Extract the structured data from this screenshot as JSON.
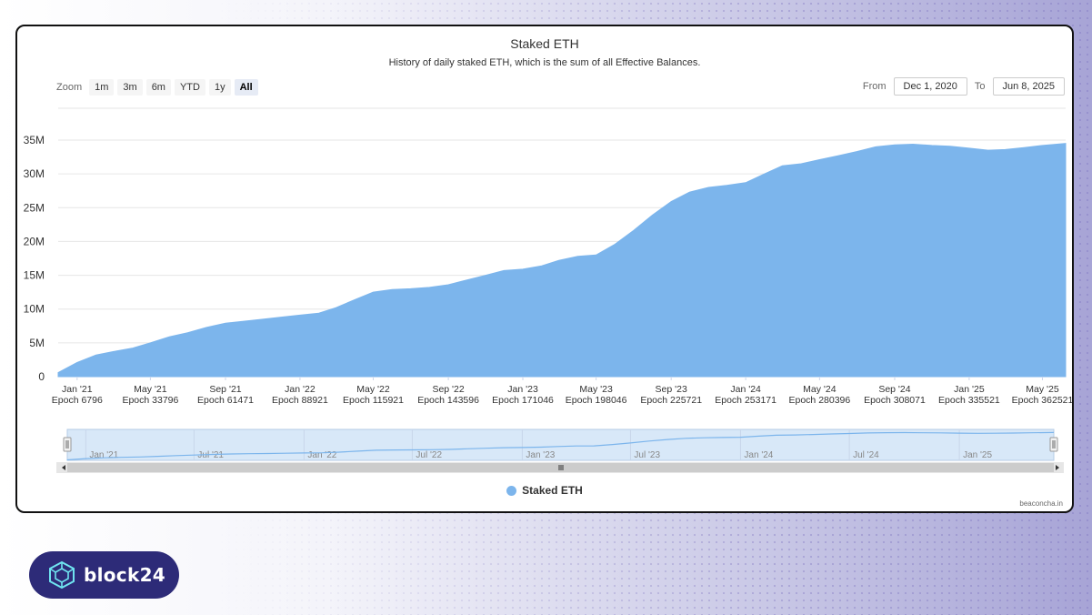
{
  "header": {
    "title": "Staked ETH",
    "subtitle": "History of daily staked ETH, which is the sum of all Effective Balances."
  },
  "zoom": {
    "label": "Zoom",
    "buttons": [
      "1m",
      "3m",
      "6m",
      "YTD",
      "1y",
      "All"
    ],
    "active": "All"
  },
  "range": {
    "from_label": "From",
    "from_value": "Dec 1, 2020",
    "to_label": "To",
    "to_value": "Jun 8, 2025"
  },
  "legend": {
    "label": "Staked ETH"
  },
  "credit": "beaconcha.in",
  "brand": {
    "name": "block24"
  },
  "colors": {
    "series": "#7cb5ec",
    "navigator_fill": "#d8e8f8",
    "brand_bg": "#2d2b78"
  },
  "chart_data": {
    "type": "area",
    "title": "Staked ETH",
    "subtitle": "History of daily staked ETH, which is the sum of all Effective Balances.",
    "ylim": [
      0,
      35000000
    ],
    "yticks": [
      0,
      5000000,
      10000000,
      15000000,
      20000000,
      25000000,
      30000000,
      35000000
    ],
    "ytick_labels": [
      "0",
      "5M",
      "10M",
      "15M",
      "20M",
      "25M",
      "30M",
      "35M"
    ],
    "xlim": [
      "2020-12-01",
      "2025-06-08"
    ],
    "xticks": [
      {
        "date": "2021-01-01",
        "label": "Jan '21",
        "epoch": "Epoch 6796"
      },
      {
        "date": "2021-05-01",
        "label": "May '21",
        "epoch": "Epoch 33796"
      },
      {
        "date": "2021-09-01",
        "label": "Sep '21",
        "epoch": "Epoch 61471"
      },
      {
        "date": "2022-01-01",
        "label": "Jan '22",
        "epoch": "Epoch 88921"
      },
      {
        "date": "2022-05-01",
        "label": "May '22",
        "epoch": "Epoch 115921"
      },
      {
        "date": "2022-09-01",
        "label": "Sep '22",
        "epoch": "Epoch 143596"
      },
      {
        "date": "2023-01-01",
        "label": "Jan '23",
        "epoch": "Epoch 171046"
      },
      {
        "date": "2023-05-01",
        "label": "May '23",
        "epoch": "Epoch 198046"
      },
      {
        "date": "2023-09-01",
        "label": "Sep '23",
        "epoch": "Epoch 225721"
      },
      {
        "date": "2024-01-01",
        "label": "Jan '24",
        "epoch": "Epoch 253171"
      },
      {
        "date": "2024-05-01",
        "label": "May '24",
        "epoch": "Epoch 280396"
      },
      {
        "date": "2024-09-01",
        "label": "Sep '24",
        "epoch": "Epoch 308071"
      },
      {
        "date": "2025-01-01",
        "label": "Jan '25",
        "epoch": "Epoch 335521"
      },
      {
        "date": "2025-05-01",
        "label": "May '25",
        "epoch": "Epoch 362521"
      }
    ],
    "navigator_ticks": [
      {
        "date": "2021-01-01",
        "label": "Jan '21"
      },
      {
        "date": "2021-07-01",
        "label": "Jul '21"
      },
      {
        "date": "2022-01-01",
        "label": "Jan '22"
      },
      {
        "date": "2022-07-01",
        "label": "Jul '22"
      },
      {
        "date": "2023-01-01",
        "label": "Jan '23"
      },
      {
        "date": "2023-07-01",
        "label": "Jul '23"
      },
      {
        "date": "2024-01-01",
        "label": "Jan '24"
      },
      {
        "date": "2024-07-01",
        "label": "Jul '24"
      },
      {
        "date": "2025-01-01",
        "label": "Jan '25"
      }
    ],
    "grid": true,
    "legend_position": "bottom-center",
    "series": [
      {
        "name": "Staked ETH",
        "points": [
          [
            "2020-12-01",
            600000
          ],
          [
            "2021-01-01",
            2100000
          ],
          [
            "2021-02-01",
            3200000
          ],
          [
            "2021-03-01",
            3700000
          ],
          [
            "2021-04-01",
            4200000
          ],
          [
            "2021-05-01",
            5000000
          ],
          [
            "2021-06-01",
            5900000
          ],
          [
            "2021-07-01",
            6500000
          ],
          [
            "2021-08-01",
            7300000
          ],
          [
            "2021-09-01",
            7900000
          ],
          [
            "2021-10-01",
            8200000
          ],
          [
            "2021-11-01",
            8500000
          ],
          [
            "2021-12-01",
            8800000
          ],
          [
            "2022-01-01",
            9100000
          ],
          [
            "2022-02-01",
            9400000
          ],
          [
            "2022-03-01",
            10200000
          ],
          [
            "2022-04-01",
            11400000
          ],
          [
            "2022-05-01",
            12500000
          ],
          [
            "2022-06-01",
            12900000
          ],
          [
            "2022-07-01",
            13000000
          ],
          [
            "2022-08-01",
            13200000
          ],
          [
            "2022-09-01",
            13600000
          ],
          [
            "2022-10-01",
            14300000
          ],
          [
            "2022-11-01",
            15000000
          ],
          [
            "2022-12-01",
            15700000
          ],
          [
            "2023-01-01",
            15900000
          ],
          [
            "2023-02-01",
            16400000
          ],
          [
            "2023-03-01",
            17200000
          ],
          [
            "2023-04-01",
            17800000
          ],
          [
            "2023-05-01",
            18000000
          ],
          [
            "2023-06-01",
            19600000
          ],
          [
            "2023-07-01",
            21600000
          ],
          [
            "2023-08-01",
            23900000
          ],
          [
            "2023-09-01",
            25900000
          ],
          [
            "2023-10-01",
            27300000
          ],
          [
            "2023-11-01",
            28000000
          ],
          [
            "2023-12-01",
            28300000
          ],
          [
            "2024-01-01",
            28700000
          ],
          [
            "2024-02-01",
            30000000
          ],
          [
            "2024-03-01",
            31200000
          ],
          [
            "2024-04-01",
            31500000
          ],
          [
            "2024-05-01",
            32100000
          ],
          [
            "2024-06-01",
            32700000
          ],
          [
            "2024-07-01",
            33300000
          ],
          [
            "2024-08-01",
            34000000
          ],
          [
            "2024-09-01",
            34300000
          ],
          [
            "2024-10-01",
            34400000
          ],
          [
            "2024-11-01",
            34200000
          ],
          [
            "2024-12-01",
            34100000
          ],
          [
            "2025-01-01",
            33800000
          ],
          [
            "2025-02-01",
            33500000
          ],
          [
            "2025-03-01",
            33600000
          ],
          [
            "2025-04-01",
            33900000
          ],
          [
            "2025-05-01",
            34200000
          ],
          [
            "2025-06-08",
            34500000
          ]
        ]
      }
    ]
  }
}
